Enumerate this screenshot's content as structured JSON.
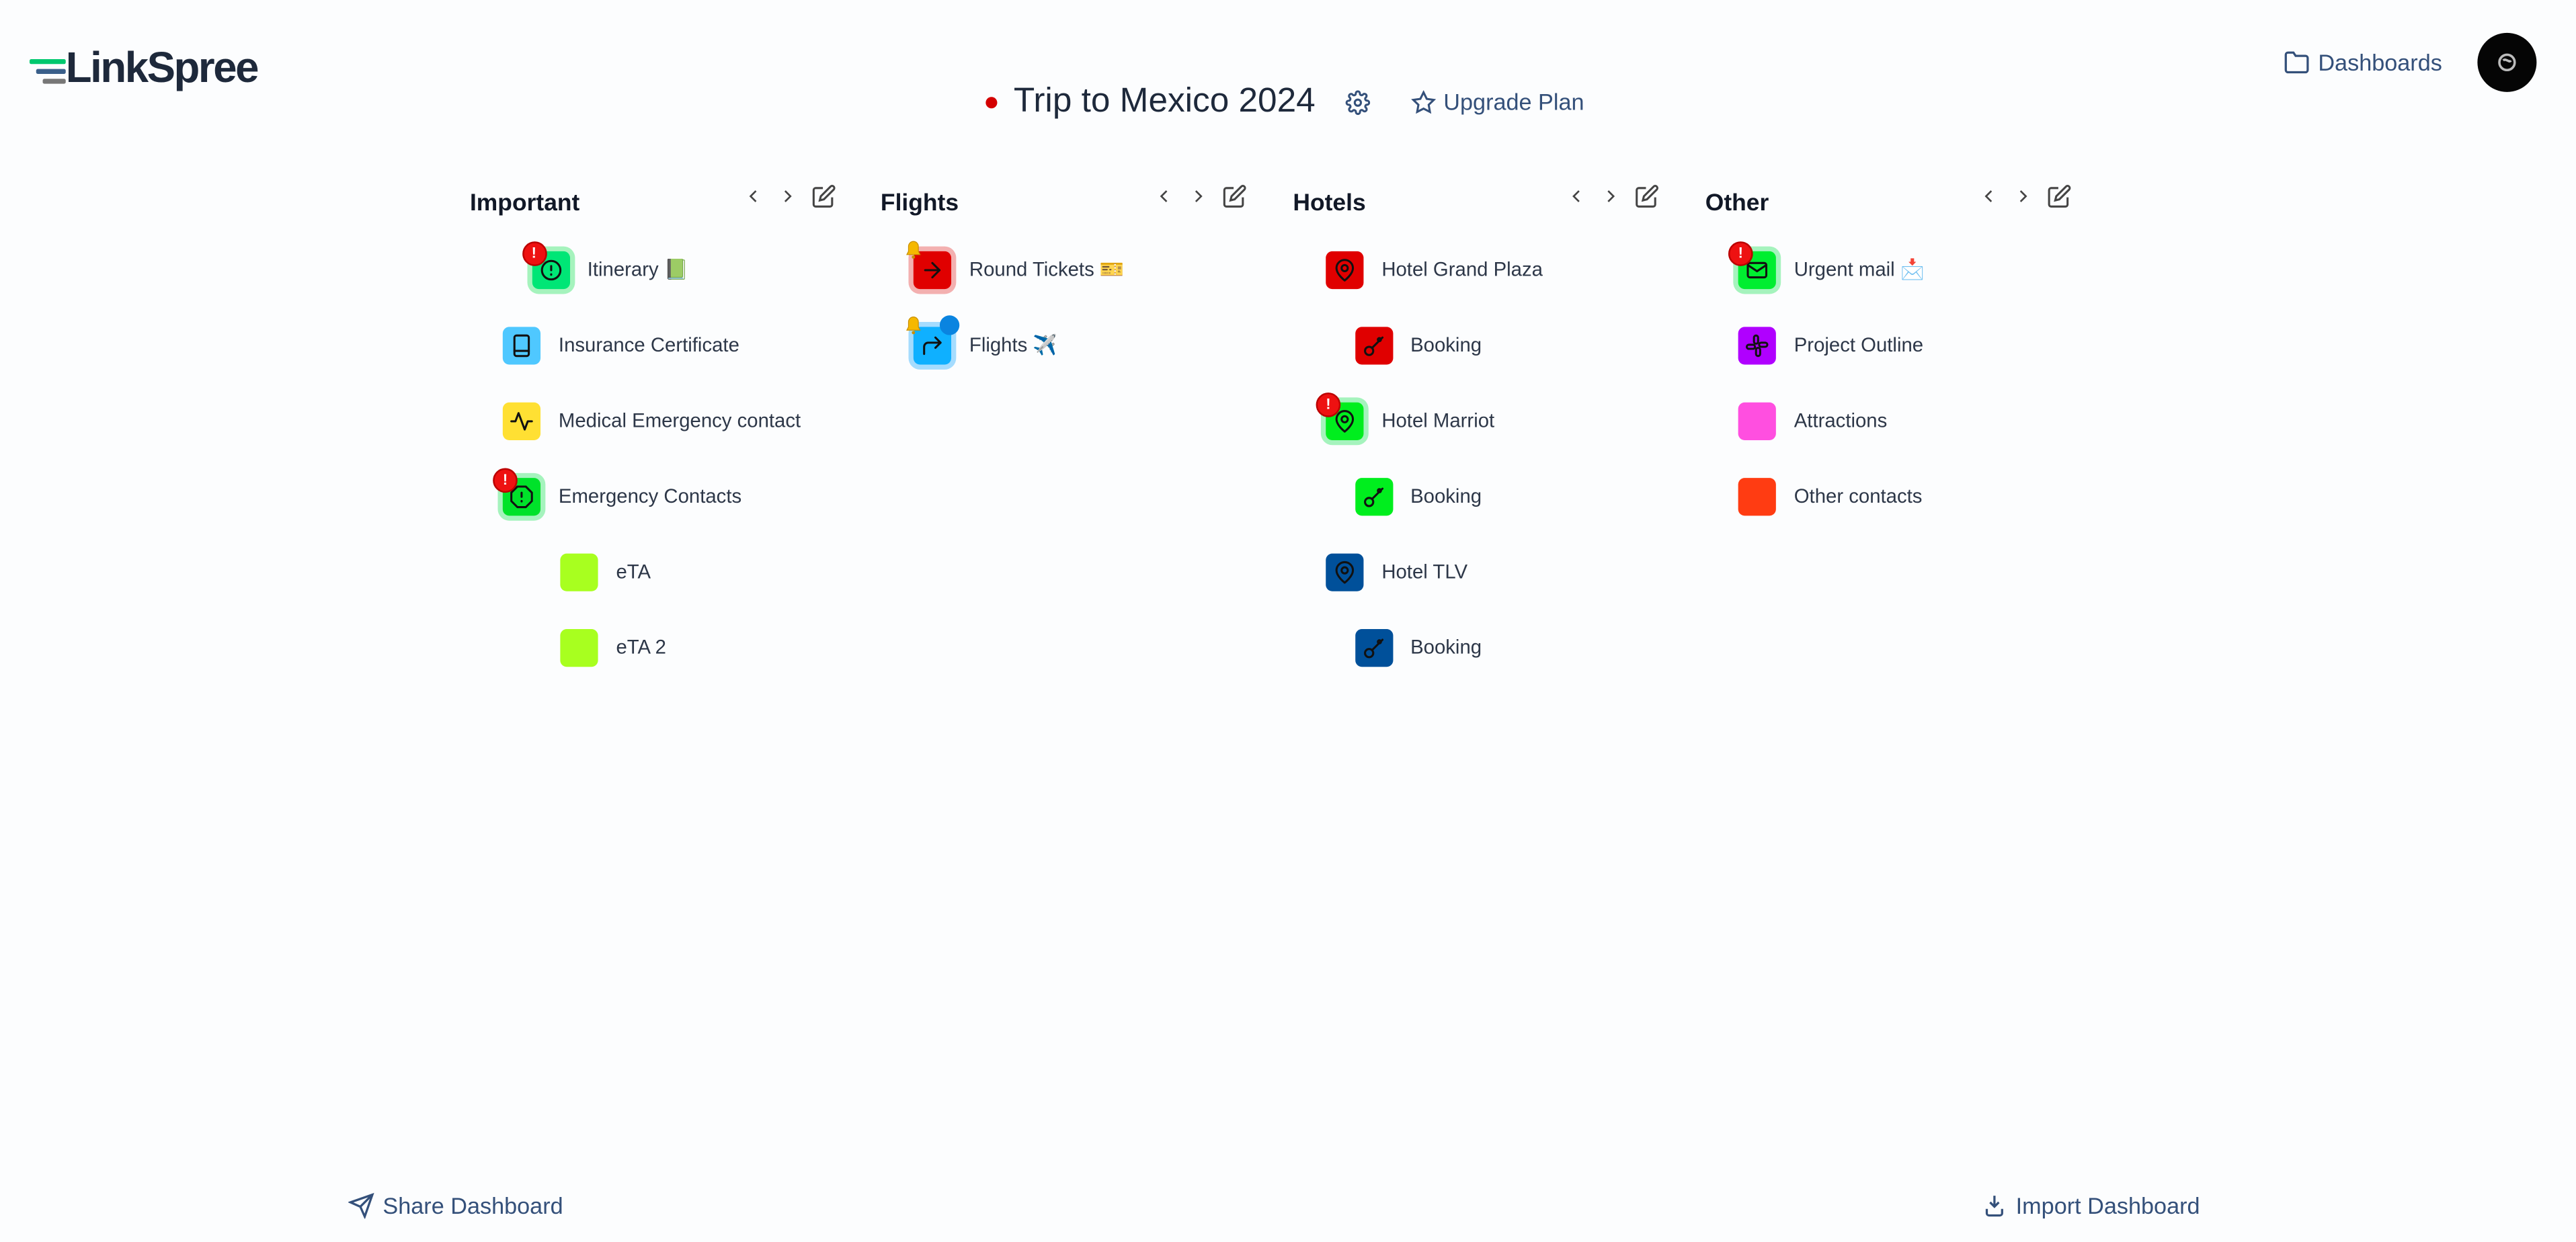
{
  "app": {
    "name": "LinkSpree"
  },
  "header": {
    "title": "Trip to Mexico 2024",
    "upgrade_label": "Upgrade Plan",
    "dashboards_label": "Dashboards"
  },
  "footer": {
    "share_label": "Share Dashboard",
    "import_label": "Import Dashboard"
  },
  "colors": {
    "accent": "#34507a",
    "text": "#1e293b",
    "status_dot": "#d40000"
  },
  "columns": [
    {
      "title": "Important",
      "items": [
        {
          "label": "Itinerary 📗",
          "color": "#00e676",
          "icon": "alert-circle-icon",
          "level": 1,
          "halo": "green",
          "badges": [
            "alert"
          ]
        },
        {
          "label": "Insurance Certificate",
          "color": "#4fc8ff",
          "icon": "book-icon",
          "level": 0
        },
        {
          "label": "Medical Emergency contact",
          "color": "#ffe033",
          "icon": "activity-icon",
          "level": 0
        },
        {
          "label": "Emergency Contacts",
          "color": "#00e22a",
          "icon": "alert-octagon-icon",
          "level": 0,
          "halo": "green",
          "badges": [
            "alert"
          ]
        },
        {
          "label": "eTA",
          "color": "#a8ff1f",
          "icon": "none",
          "level": 2
        },
        {
          "label": "eTA 2",
          "color": "#a8ff1f",
          "icon": "none",
          "level": 2
        }
      ]
    },
    {
      "title": "Flights",
      "items": [
        {
          "label": "Round Tickets 🎫",
          "color": "#e00000",
          "icon": "arrow-right-icon",
          "level": 0,
          "halo": "red",
          "badges": [
            "bell"
          ]
        },
        {
          "label": "Flights ✈️",
          "color": "#0fb0ff",
          "icon": "corner-up-right-icon",
          "level": 0,
          "halo": "blue",
          "badges": [
            "bell",
            "comment"
          ]
        }
      ]
    },
    {
      "title": "Hotels",
      "items": [
        {
          "label": "Hotel Grand Plaza",
          "color": "#e00000",
          "icon": "map-pin-icon",
          "level": 0
        },
        {
          "label": "Booking",
          "color": "#e00000",
          "icon": "key-icon",
          "level": 1
        },
        {
          "label": "Hotel Marriot",
          "color": "#00ee1e",
          "icon": "map-pin-icon",
          "level": 0,
          "halo": "green",
          "badges": [
            "alert"
          ]
        },
        {
          "label": "Booking",
          "color": "#00ee1e",
          "icon": "key-icon",
          "level": 1
        },
        {
          "label": "Hotel TLV",
          "color": "#00509a",
          "icon": "map-pin-icon",
          "level": 0
        },
        {
          "label": "Booking",
          "color": "#00509a",
          "icon": "key-icon",
          "level": 1
        }
      ]
    },
    {
      "title": "Other",
      "items": [
        {
          "label": "Urgent mail 📩",
          "color": "#00ee30",
          "icon": "mail-icon",
          "level": 0,
          "halo": "green",
          "badges": [
            "alert"
          ]
        },
        {
          "label": "Project Outline",
          "color": "#b000ff",
          "icon": "slack-icon",
          "level": 0
        },
        {
          "label": "Attractions",
          "color": "#ff4fe0",
          "icon": "none",
          "level": 0
        },
        {
          "label": "Other contacts",
          "color": "#ff3c12",
          "icon": "none",
          "level": 0
        }
      ]
    }
  ]
}
